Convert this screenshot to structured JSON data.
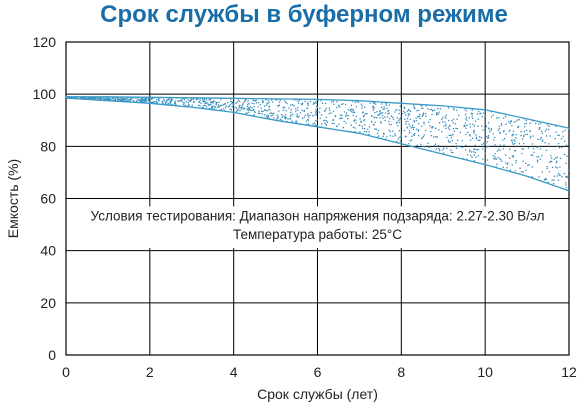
{
  "chart_data": {
    "type": "area",
    "title": "Срок службы в буферном режиме",
    "xlabel": "Срок службы (лет)",
    "ylabel": "Емкость (%)",
    "xlim": [
      0,
      12
    ],
    "ylim": [
      0,
      120
    ],
    "x_ticks": [
      "0",
      "2",
      "4",
      "6",
      "8",
      "10",
      "12"
    ],
    "y_ticks": [
      "0",
      "20",
      "40",
      "60",
      "80",
      "100",
      "120"
    ],
    "grid": true,
    "annotation": {
      "line1": "Условия тестирования: Диапазон напряжения подзаряда: 2.27-2.30 В/эл",
      "line2": "Температура работы: 25°C"
    },
    "series": [
      {
        "x": [
          0,
          1,
          2,
          3,
          4,
          5,
          6,
          7,
          8,
          9,
          10,
          11,
          12
        ],
        "y": [
          99,
          99,
          98.8,
          98.6,
          98.4,
          98.2,
          98,
          97.5,
          96.5,
          95.5,
          94,
          90.5,
          87
        ]
      },
      {
        "x": [
          0,
          1,
          2,
          3,
          4,
          5,
          6,
          7,
          8,
          9,
          10,
          11,
          12
        ],
        "y": [
          98.5,
          97.5,
          96.5,
          95,
          93,
          90,
          87.5,
          85,
          81,
          77,
          73,
          68.5,
          63
        ]
      }
    ],
    "colors": {
      "title": "#1a6ea8",
      "line": "#3a9bc9",
      "dots": "#3a8fbd",
      "grid": "#000000"
    }
  }
}
